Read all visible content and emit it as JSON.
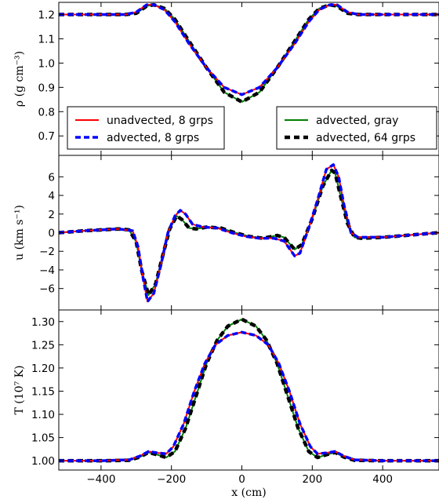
{
  "chart_data": [
    {
      "type": "line",
      "panel": "density",
      "ylabel": "ρ (g cm⁻³)",
      "xlim": [
        -520,
        560
      ],
      "ylim": [
        0.62,
        1.25
      ],
      "yticks": [
        0.7,
        0.8,
        0.9,
        1.0,
        1.1,
        1.2
      ],
      "yticklabels": [
        "0.7",
        "0.8",
        "0.9",
        "1.0",
        "1.1",
        "1.2"
      ],
      "legend": [
        {
          "name": "unadvected, 8 grps",
          "series": "unadv8",
          "placement": "lower-left"
        },
        {
          "name": "advected, 8 grps",
          "series": "adv8",
          "placement": "lower-left"
        },
        {
          "name": "advected, gray",
          "series": "gray",
          "placement": "lower-right"
        },
        {
          "name": "advected, 64 grps",
          "series": "adv64",
          "placement": "lower-right"
        }
      ],
      "series": [
        {
          "id": "gray",
          "color": "#008000",
          "style": "solid",
          "x": [
            -520,
            -400,
            -330,
            -300,
            -270,
            -250,
            -220,
            -190,
            -150,
            -100,
            -50,
            0,
            50,
            100,
            150,
            190,
            220,
            250,
            270,
            300,
            330,
            400,
            560
          ],
          "y": [
            1.2,
            1.2,
            1.2,
            1.205,
            1.235,
            1.24,
            1.225,
            1.18,
            1.09,
            0.98,
            0.88,
            0.84,
            0.88,
            0.98,
            1.09,
            1.18,
            1.225,
            1.24,
            1.235,
            1.205,
            1.2,
            1.2,
            1.2
          ]
        },
        {
          "id": "adv64",
          "color": "#000000",
          "style": "dashed-thick",
          "x": [
            -520,
            -400,
            -330,
            -300,
            -270,
            -250,
            -220,
            -190,
            -150,
            -100,
            -50,
            0,
            50,
            100,
            150,
            190,
            220,
            250,
            270,
            300,
            330,
            400,
            560
          ],
          "y": [
            1.2,
            1.2,
            1.2,
            1.205,
            1.235,
            1.24,
            1.225,
            1.18,
            1.09,
            0.98,
            0.88,
            0.84,
            0.88,
            0.98,
            1.09,
            1.18,
            1.225,
            1.24,
            1.235,
            1.205,
            1.2,
            1.2,
            1.2
          ]
        },
        {
          "id": "unadv8",
          "color": "#ff0000",
          "style": "solid",
          "x": [
            -520,
            -400,
            -330,
            -300,
            -270,
            -250,
            -220,
            -190,
            -150,
            -100,
            -50,
            0,
            50,
            100,
            150,
            190,
            220,
            250,
            270,
            300,
            330,
            400,
            560
          ],
          "y": [
            1.2,
            1.2,
            1.2,
            1.21,
            1.24,
            1.24,
            1.22,
            1.17,
            1.08,
            0.98,
            0.9,
            0.87,
            0.9,
            0.98,
            1.08,
            1.17,
            1.22,
            1.24,
            1.24,
            1.21,
            1.2,
            1.2,
            1.2
          ]
        },
        {
          "id": "adv8",
          "color": "#0000ff",
          "style": "dashed",
          "x": [
            -520,
            -400,
            -330,
            -300,
            -270,
            -250,
            -220,
            -190,
            -150,
            -100,
            -50,
            0,
            50,
            100,
            150,
            190,
            220,
            250,
            270,
            300,
            330,
            400,
            560
          ],
          "y": [
            1.2,
            1.2,
            1.2,
            1.21,
            1.24,
            1.24,
            1.22,
            1.17,
            1.08,
            0.98,
            0.9,
            0.87,
            0.9,
            0.98,
            1.08,
            1.17,
            1.22,
            1.24,
            1.24,
            1.21,
            1.2,
            1.2,
            1.2
          ]
        }
      ]
    },
    {
      "type": "line",
      "panel": "velocity",
      "ylabel": "u (km s⁻¹)",
      "xlim": [
        -520,
        560
      ],
      "ylim": [
        -8.3,
        8.3
      ],
      "yticks": [
        -6,
        -4,
        -2,
        0,
        2,
        4,
        6
      ],
      "yticklabels": [
        "−6",
        "−4",
        "−2",
        "0",
        "2",
        "4",
        "6"
      ],
      "series": [
        {
          "id": "gray",
          "color": "#008000",
          "style": "solid",
          "x": [
            -520,
            -450,
            -350,
            -320,
            -300,
            -285,
            -265,
            -245,
            -225,
            -205,
            -185,
            -170,
            -150,
            -130,
            -100,
            -60,
            -20,
            20,
            60,
            100,
            120,
            150,
            170,
            200,
            230,
            255,
            265,
            280,
            300,
            320,
            340,
            400,
            560
          ],
          "y": [
            0,
            0.2,
            0.4,
            0.3,
            -1.0,
            -4.0,
            -6.7,
            -5.5,
            -2.5,
            0.4,
            1.8,
            1.4,
            0.5,
            0.4,
            0.6,
            0.5,
            0.0,
            -0.4,
            -0.6,
            -0.3,
            -0.5,
            -1.8,
            -1.3,
            1.5,
            5.0,
            6.7,
            6.4,
            4.0,
            1.0,
            -0.5,
            -0.6,
            -0.5,
            0.0
          ]
        },
        {
          "id": "adv64",
          "color": "#000000",
          "style": "dashed-thick",
          "x": [
            -520,
            -450,
            -350,
            -320,
            -300,
            -285,
            -265,
            -245,
            -225,
            -205,
            -185,
            -170,
            -150,
            -130,
            -100,
            -60,
            -20,
            20,
            60,
            100,
            120,
            150,
            170,
            200,
            230,
            255,
            265,
            280,
            300,
            320,
            340,
            400,
            560
          ],
          "y": [
            0,
            0.2,
            0.4,
            0.3,
            -1.0,
            -4.0,
            -6.7,
            -5.5,
            -2.5,
            0.4,
            1.8,
            1.4,
            0.5,
            0.4,
            0.6,
            0.5,
            0.0,
            -0.4,
            -0.6,
            -0.3,
            -0.5,
            -1.8,
            -1.3,
            1.5,
            5.0,
            6.7,
            6.4,
            4.0,
            1.0,
            -0.5,
            -0.6,
            -0.5,
            0.0
          ]
        },
        {
          "id": "unadv8",
          "color": "#ff0000",
          "style": "solid",
          "x": [
            -520,
            -450,
            -350,
            -310,
            -295,
            -280,
            -268,
            -250,
            -230,
            -210,
            -190,
            -175,
            -160,
            -140,
            -110,
            -70,
            -30,
            10,
            50,
            90,
            120,
            150,
            165,
            190,
            215,
            240,
            260,
            275,
            290,
            310,
            330,
            400,
            560
          ],
          "y": [
            0,
            0.2,
            0.4,
            0.2,
            -1.5,
            -5.0,
            -7.4,
            -6.5,
            -3.5,
            0.0,
            1.8,
            2.4,
            2.0,
            0.9,
            0.6,
            0.5,
            0.0,
            -0.4,
            -0.6,
            -0.6,
            -0.9,
            -2.5,
            -2.2,
            0.5,
            3.5,
            6.8,
            7.3,
            6.0,
            3.0,
            0.0,
            -0.5,
            -0.5,
            0.0
          ]
        },
        {
          "id": "adv8",
          "color": "#0000ff",
          "style": "dashed",
          "x": [
            -520,
            -450,
            -350,
            -310,
            -295,
            -280,
            -268,
            -250,
            -230,
            -210,
            -190,
            -175,
            -160,
            -140,
            -110,
            -70,
            -30,
            10,
            50,
            90,
            120,
            150,
            165,
            190,
            215,
            240,
            260,
            275,
            290,
            310,
            330,
            400,
            560
          ],
          "y": [
            0,
            0.2,
            0.4,
            0.2,
            -1.5,
            -5.0,
            -7.4,
            -6.5,
            -3.5,
            0.0,
            1.8,
            2.4,
            2.0,
            0.9,
            0.6,
            0.5,
            0.0,
            -0.4,
            -0.6,
            -0.6,
            -0.9,
            -2.5,
            -2.2,
            0.5,
            3.5,
            6.8,
            7.3,
            6.0,
            3.0,
            0.0,
            -0.5,
            -0.5,
            0.0
          ]
        }
      ]
    },
    {
      "type": "line",
      "panel": "temperature",
      "ylabel": "T (10⁷ K)",
      "xlabel": "x (cm)",
      "xlim": [
        -520,
        560
      ],
      "ylim": [
        0.98,
        1.325
      ],
      "yticks": [
        1.0,
        1.05,
        1.1,
        1.15,
        1.2,
        1.25,
        1.3
      ],
      "yticklabels": [
        "1.00",
        "1.05",
        "1.10",
        "1.15",
        "1.20",
        "1.25",
        "1.30"
      ],
      "xticks": [
        -400,
        -200,
        0,
        200,
        400
      ],
      "xticklabels": [
        "−400",
        "−200",
        "0",
        "200",
        "400"
      ],
      "series": [
        {
          "id": "gray",
          "color": "#008000",
          "style": "solid",
          "x": [
            -520,
            -400,
            -320,
            -290,
            -265,
            -240,
            -215,
            -190,
            -160,
            -130,
            -100,
            -70,
            -40,
            0,
            40,
            70,
            100,
            130,
            160,
            190,
            215,
            240,
            265,
            290,
            320,
            400,
            560
          ],
          "y": [
            1.0,
            1.0,
            1.001,
            1.008,
            1.018,
            1.013,
            1.007,
            1.02,
            1.07,
            1.14,
            1.21,
            1.26,
            1.29,
            1.305,
            1.29,
            1.26,
            1.21,
            1.14,
            1.07,
            1.02,
            1.007,
            1.013,
            1.018,
            1.008,
            1.001,
            1.0,
            1.0
          ]
        },
        {
          "id": "adv64",
          "color": "#000000",
          "style": "dashed-thick",
          "x": [
            -520,
            -400,
            -320,
            -290,
            -265,
            -240,
            -215,
            -190,
            -160,
            -130,
            -100,
            -70,
            -40,
            0,
            40,
            70,
            100,
            130,
            160,
            190,
            215,
            240,
            265,
            290,
            320,
            400,
            560
          ],
          "y": [
            1.0,
            1.0,
            1.001,
            1.008,
            1.018,
            1.013,
            1.007,
            1.02,
            1.07,
            1.14,
            1.21,
            1.26,
            1.29,
            1.305,
            1.29,
            1.26,
            1.21,
            1.14,
            1.07,
            1.02,
            1.007,
            1.013,
            1.018,
            1.008,
            1.001,
            1.0,
            1.0
          ]
        },
        {
          "id": "unadv8",
          "color": "#ff0000",
          "style": "solid",
          "x": [
            -520,
            -400,
            -320,
            -290,
            -265,
            -240,
            -215,
            -195,
            -165,
            -135,
            -105,
            -75,
            -40,
            0,
            40,
            75,
            105,
            135,
            165,
            195,
            215,
            240,
            265,
            290,
            320,
            400,
            560
          ],
          "y": [
            1.0,
            1.0,
            1.002,
            1.01,
            1.02,
            1.017,
            1.015,
            1.03,
            1.08,
            1.15,
            1.21,
            1.25,
            1.27,
            1.277,
            1.27,
            1.25,
            1.21,
            1.15,
            1.08,
            1.03,
            1.015,
            1.017,
            1.02,
            1.01,
            1.002,
            1.0,
            1.0
          ]
        },
        {
          "id": "adv8",
          "color": "#0000ff",
          "style": "dashed",
          "x": [
            -520,
            -400,
            -320,
            -290,
            -265,
            -240,
            -215,
            -195,
            -165,
            -135,
            -105,
            -75,
            -40,
            0,
            40,
            75,
            105,
            135,
            165,
            195,
            215,
            240,
            265,
            290,
            320,
            400,
            560
          ],
          "y": [
            1.0,
            1.0,
            1.002,
            1.01,
            1.02,
            1.017,
            1.015,
            1.03,
            1.08,
            1.15,
            1.21,
            1.25,
            1.27,
            1.277,
            1.27,
            1.25,
            1.21,
            1.15,
            1.08,
            1.03,
            1.015,
            1.017,
            1.02,
            1.01,
            1.002,
            1.0,
            1.0
          ]
        }
      ]
    }
  ]
}
